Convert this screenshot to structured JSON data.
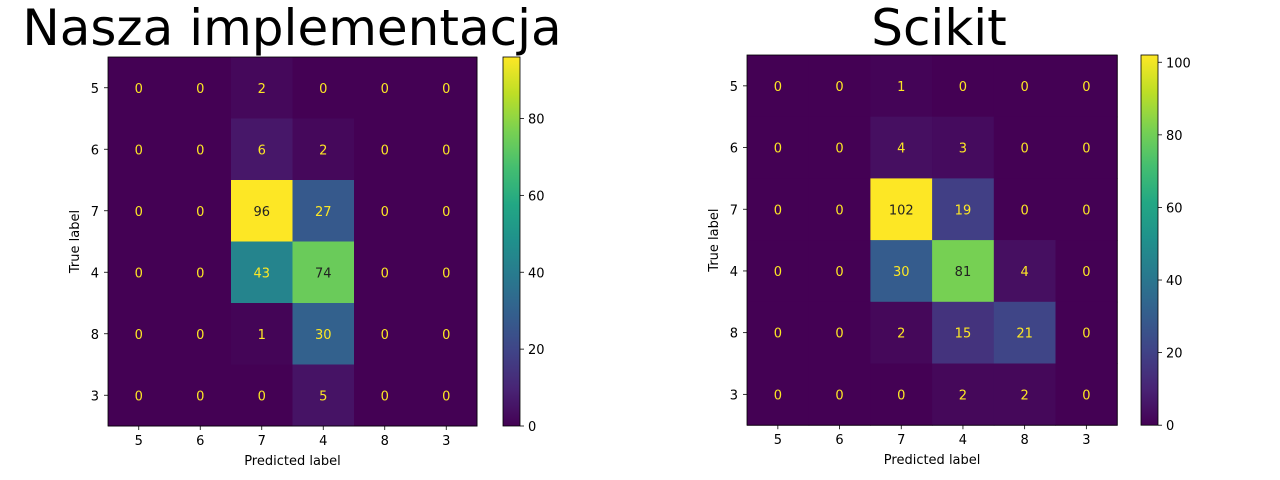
{
  "chart_data": [
    {
      "type": "heatmap",
      "title": "Nasza implementacja",
      "xlabel": "Predicted label",
      "ylabel": "True label",
      "x_categories": [
        "5",
        "6",
        "7",
        "4",
        "8",
        "3"
      ],
      "y_categories": [
        "5",
        "6",
        "7",
        "4",
        "8",
        "3"
      ],
      "values": [
        [
          0,
          0,
          2,
          0,
          0,
          0
        ],
        [
          0,
          0,
          6,
          2,
          0,
          0
        ],
        [
          0,
          0,
          96,
          27,
          0,
          0
        ],
        [
          0,
          0,
          43,
          74,
          0,
          0
        ],
        [
          0,
          0,
          1,
          30,
          0,
          0
        ],
        [
          0,
          0,
          0,
          5,
          0,
          0
        ]
      ],
      "colormap": "viridis",
      "colorbar_range": [
        0,
        96
      ],
      "colorbar_ticks": [
        0,
        20,
        40,
        60,
        80
      ]
    },
    {
      "type": "heatmap",
      "title": "Scikit",
      "xlabel": "Predicted label",
      "ylabel": "True label",
      "x_categories": [
        "5",
        "6",
        "7",
        "4",
        "8",
        "3"
      ],
      "y_categories": [
        "5",
        "6",
        "7",
        "4",
        "8",
        "3"
      ],
      "values": [
        [
          0,
          0,
          1,
          0,
          0,
          0
        ],
        [
          0,
          0,
          4,
          3,
          0,
          0
        ],
        [
          0,
          0,
          102,
          19,
          0,
          0
        ],
        [
          0,
          0,
          30,
          81,
          4,
          0
        ],
        [
          0,
          0,
          2,
          15,
          21,
          0
        ],
        [
          0,
          0,
          0,
          2,
          2,
          0
        ]
      ],
      "colormap": "viridis",
      "colorbar_range": [
        0,
        102
      ],
      "colorbar_ticks": [
        0,
        20,
        40,
        60,
        80,
        100
      ]
    }
  ]
}
